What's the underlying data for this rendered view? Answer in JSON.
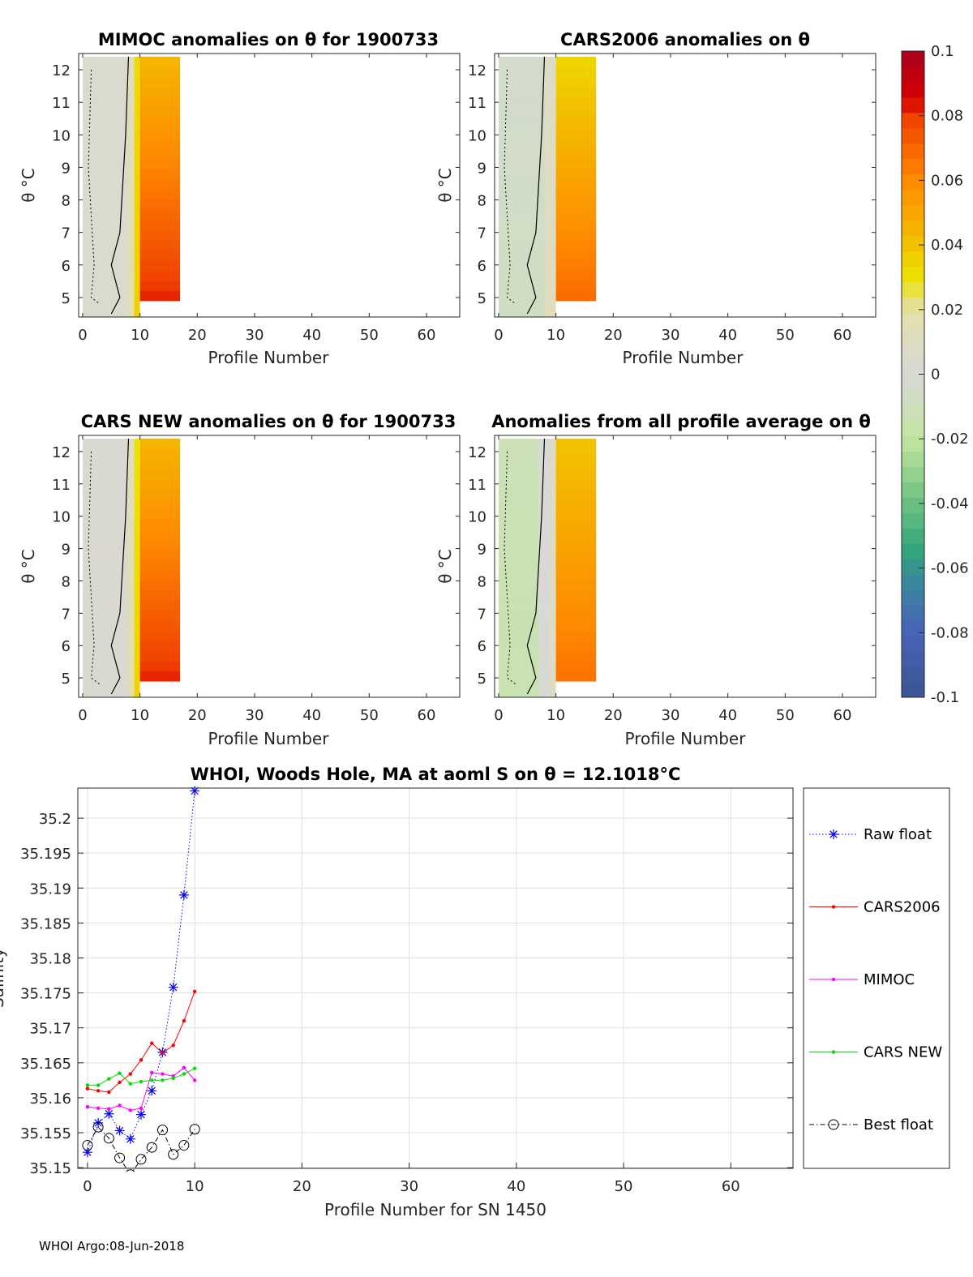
{
  "footer": "WHOI Argo:08-Jun-2018",
  "colorbar": {
    "ticks": [
      "0.1",
      "0.08",
      "0.06",
      "0.04",
      "0.02",
      "0",
      "-0.02",
      "-0.04",
      "-0.06",
      "-0.08",
      "-0.1"
    ],
    "range": [
      -0.1,
      0.1
    ],
    "stops": [
      [
        -0.1,
        "#3a5590"
      ],
      [
        -0.08,
        "#4a63b8"
      ],
      [
        -0.065,
        "#3a86a0"
      ],
      [
        -0.055,
        "#32a47c"
      ],
      [
        -0.04,
        "#6cc080"
      ],
      [
        -0.02,
        "#c2e6a0"
      ],
      [
        0,
        "#d8d8d8"
      ],
      [
        0.02,
        "#e4e0a8"
      ],
      [
        0.03,
        "#ece200"
      ],
      [
        0.04,
        "#f2c200"
      ],
      [
        0.06,
        "#ff8a00"
      ],
      [
        0.08,
        "#f04000"
      ],
      [
        0.085,
        "#d80000"
      ],
      [
        0.1,
        "#a80020"
      ]
    ]
  },
  "chart_data": [
    {
      "type": "heatmap",
      "title": "MIMOC anomalies on θ  for 1900733",
      "xlabel": "Profile Number",
      "ylabel": "θ °C",
      "xlim": [
        -0.7,
        65.8
      ],
      "ylim": [
        4.4,
        12.5
      ],
      "xticks": [
        "0",
        "10",
        "20",
        "30",
        "40",
        "50",
        "60"
      ],
      "yticks": [
        "5",
        "6",
        "7",
        "8",
        "9",
        "10",
        "11",
        "12"
      ],
      "columns": [
        {
          "x": [
            0,
            8
          ],
          "top": 0.004,
          "bottom": 0.004
        },
        {
          "x": [
            8,
            9
          ],
          "top": 0.012,
          "bottom": 0.02
        },
        {
          "x": [
            9,
            10
          ],
          "top": 0.033,
          "bottom": 0.036
        },
        {
          "x": [
            10,
            17
          ],
          "top": 0.045,
          "bottom": 0.082
        }
      ],
      "block_theta": [
        4.9,
        12.4
      ]
    },
    {
      "type": "heatmap",
      "title": "CARS2006 anomalies on θ",
      "xlabel": "Profile Number",
      "ylabel": "θ °C",
      "xlim": [
        -0.7,
        65.8
      ],
      "ylim": [
        4.4,
        12.5
      ],
      "xticks": [
        "0",
        "10",
        "20",
        "30",
        "40",
        "50",
        "60"
      ],
      "yticks": [
        "5",
        "6",
        "7",
        "8",
        "9",
        "10",
        "11",
        "12"
      ],
      "columns": [
        {
          "x": [
            0,
            8
          ],
          "top": -0.004,
          "bottom": -0.008
        },
        {
          "x": [
            8,
            10
          ],
          "top": 0.008,
          "bottom": 0.012
        },
        {
          "x": [
            10,
            17
          ],
          "top": 0.034,
          "bottom": 0.068
        }
      ],
      "block_theta": [
        4.9,
        12.4
      ]
    },
    {
      "type": "heatmap",
      "title": "CARS NEW anomalies on θ for 1900733",
      "xlabel": "Profile Number",
      "ylabel": "θ °C",
      "xlim": [
        -0.7,
        65.8
      ],
      "ylim": [
        4.4,
        12.5
      ],
      "xticks": [
        "0",
        "10",
        "20",
        "30",
        "40",
        "50",
        "60"
      ],
      "yticks": [
        "5",
        "6",
        "7",
        "8",
        "9",
        "10",
        "11",
        "12"
      ],
      "columns": [
        {
          "x": [
            0,
            8
          ],
          "top": 0.003,
          "bottom": 0.003
        },
        {
          "x": [
            8,
            9
          ],
          "top": 0.012,
          "bottom": 0.02
        },
        {
          "x": [
            9,
            10
          ],
          "top": 0.03,
          "bottom": 0.035
        },
        {
          "x": [
            10,
            17
          ],
          "top": 0.045,
          "bottom": 0.082
        }
      ],
      "block_theta": [
        4.9,
        12.4
      ]
    },
    {
      "type": "heatmap",
      "title": "Anomalies from all profile average on θ",
      "xlabel": "Profile Number",
      "ylabel": "θ °C",
      "xlim": [
        -0.7,
        65.8
      ],
      "ylim": [
        4.4,
        12.5
      ],
      "xticks": [
        "0",
        "10",
        "20",
        "30",
        "40",
        "50",
        "60"
      ],
      "yticks": [
        "5",
        "6",
        "7",
        "8",
        "9",
        "10",
        "11",
        "12"
      ],
      "columns": [
        {
          "x": [
            0,
            7
          ],
          "top": -0.012,
          "bottom": -0.014
        },
        {
          "x": [
            7,
            9
          ],
          "top": 0.0,
          "bottom": 0.002
        },
        {
          "x": [
            9,
            10
          ],
          "top": 0.008,
          "bottom": 0.01
        },
        {
          "x": [
            10,
            17
          ],
          "top": 0.04,
          "bottom": 0.066
        }
      ],
      "block_theta": [
        4.9,
        12.4
      ]
    },
    {
      "type": "line",
      "title": "WHOI, Woods Hole, MA at aoml S on θ = 12.1018°C",
      "xlabel": "Profile Number for SN 1450",
      "ylabel": "Salinity",
      "xlim": [
        -0.9,
        65.8
      ],
      "ylim": [
        35.1499,
        35.2043
      ],
      "grid": true,
      "xticks": [
        "0",
        "10",
        "20",
        "30",
        "40",
        "50",
        "60"
      ],
      "yticks": [
        "35.15",
        "35.155",
        "35.16",
        "35.165",
        "35.17",
        "35.175",
        "35.18",
        "35.185",
        "35.19",
        "35.195",
        "35.2"
      ],
      "x": [
        0,
        1,
        2,
        3,
        4,
        5,
        6,
        7,
        8,
        9,
        10
      ],
      "series": [
        {
          "name": "Raw float",
          "color": "#0000ff",
          "style": "dotted",
          "marker": "star",
          "values": [
            35.1522,
            35.1564,
            35.1577,
            35.1553,
            35.1541,
            35.1576,
            35.161,
            35.1665,
            35.1758,
            35.189,
            35.2039
          ]
        },
        {
          "name": "CARS2006",
          "color": "#ff0000",
          "style": "solid",
          "marker": "dot",
          "values": [
            35.1613,
            35.161,
            35.1608,
            35.1622,
            35.1634,
            35.1654,
            35.1678,
            35.1664,
            35.1675,
            35.171,
            35.1752
          ]
        },
        {
          "name": "MIMOC",
          "color": "#ff00ff",
          "style": "solid",
          "marker": "dot",
          "values": [
            35.1587,
            35.1585,
            35.1584,
            35.1589,
            35.1582,
            35.1585,
            35.1636,
            35.1634,
            35.1631,
            35.1643,
            35.1625
          ]
        },
        {
          "name": "CARS NEW",
          "color": "#00e000",
          "style": "solid",
          "marker": "dot",
          "values": [
            35.1618,
            35.1618,
            35.1627,
            35.1635,
            35.162,
            35.1623,
            35.1625,
            35.1625,
            35.1628,
            35.1634,
            35.1642
          ]
        },
        {
          "name": "Best float",
          "color": "#000000",
          "style": "dashdot",
          "marker": "circle",
          "values": [
            35.1532,
            35.1558,
            35.1542,
            35.1514,
            35.149,
            35.1512,
            35.1529,
            35.1554,
            35.1519,
            35.1532,
            35.1555
          ]
        }
      ],
      "legend": "outside-right"
    }
  ]
}
